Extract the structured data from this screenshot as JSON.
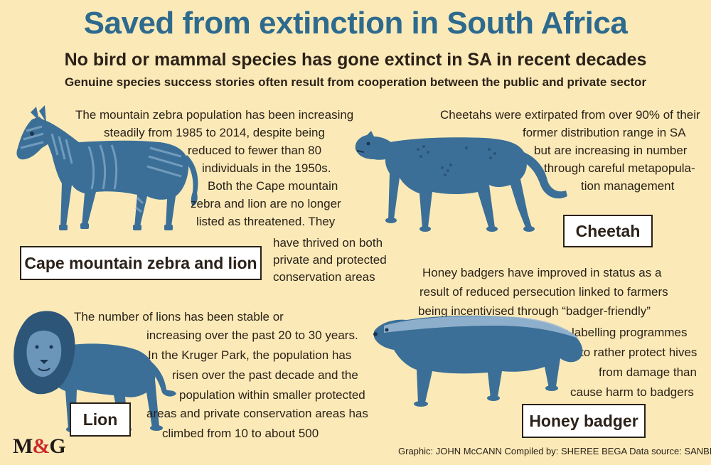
{
  "header": {
    "title": "Saved from extinction in South Africa",
    "subtitle": "No bird or mammal species has gone extinct in SA in recent decades",
    "intro": "Genuine species success stories often result from cooperation between the public and private sector"
  },
  "zebra": {
    "label": "Cape mountain zebra and lion",
    "lines": [
      "The mountain zebra population has been increasing",
      "steadily from 1985 to 2014, despite being",
      "reduced to fewer than 80",
      "individuals in the 1950s.",
      "Both the Cape mountain",
      "zebra and lion are no longer",
      "listed as threatened. They",
      "have thrived on both",
      "private and protected",
      "conservation areas"
    ]
  },
  "cheetah": {
    "label": "Cheetah",
    "lines": [
      "Cheetahs were extirpated from over 90% of their",
      "former distribution range in SA",
      "but are increasing in number",
      "through careful metapopula-",
      "tion management"
    ]
  },
  "lion": {
    "label": "Lion",
    "lines": [
      "The number of lions has been stable or",
      "increasing over the past 20 to 30 years.",
      "In the Kruger Park, the population has",
      "risen over the past decade and the",
      "population within smaller protected",
      "areas and private conservation areas has",
      "climbed from 10 to about 500"
    ]
  },
  "badger": {
    "label": "Honey badger",
    "lines": [
      "Honey badgers have improved in status as a",
      "result of reduced persecution linked to farmers",
      "being incentivised through “badger-friendly”",
      "honey-labelling programmes",
      "to rather protect hives",
      "from damage than",
      "cause harm to badgers"
    ]
  },
  "footer": {
    "logo_left": "M",
    "logo_amp": "&",
    "logo_right": "G",
    "credits": "Graphic: JOHN McCANN  Compiled by: SHEREE BEGA  Data source: SANBI"
  },
  "colors": {
    "background": "#fbeab8",
    "title": "#2e6a8e",
    "animal_fill": "#3b6f97",
    "animal_dark": "#2c5578",
    "logo_amp": "#c8282a"
  },
  "icons": [
    "zebra-illustration",
    "cheetah-illustration",
    "lion-illustration",
    "honey-badger-illustration"
  ]
}
